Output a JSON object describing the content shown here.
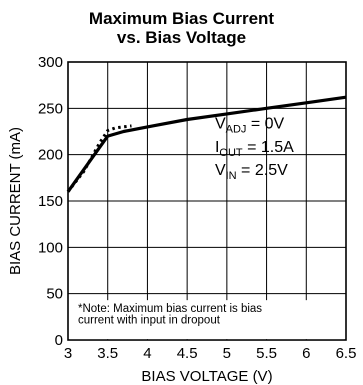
{
  "chart_data": {
    "type": "line",
    "title_lines": [
      "Maximum Bias Current",
      "vs. Bias Voltage"
    ],
    "xlabel": "BIAS VOLTAGE (V)",
    "ylabel": "BIAS CURRENT (mA)",
    "xlim": [
      3,
      6.5
    ],
    "ylim": [
      0,
      300
    ],
    "x_ticks": [
      3,
      3.5,
      4,
      4.5,
      5,
      5.5,
      6,
      6.5
    ],
    "x_tick_labels": [
      "3",
      "3.5",
      "4",
      "4.5",
      "5",
      "5.5",
      "6",
      "6.5"
    ],
    "y_ticks": [
      0,
      50,
      100,
      150,
      200,
      250,
      300
    ],
    "y_tick_labels": [
      "0",
      "50",
      "100",
      "150",
      "200",
      "250",
      "300"
    ],
    "grid": true,
    "series": [
      {
        "style": "solid",
        "x": [
          3.0,
          3.5,
          3.7,
          4.0,
          4.5,
          5.0,
          5.5,
          6.0,
          6.5
        ],
        "y": [
          160,
          220,
          225,
          230,
          238,
          244,
          250,
          256,
          262
        ]
      },
      {
        "style": "dotted",
        "x": [
          3.0,
          3.2,
          3.4,
          3.5,
          3.6,
          3.8
        ],
        "y": [
          160,
          182,
          213,
          226,
          229,
          231
        ]
      }
    ],
    "annotations": {
      "conditions": [
        {
          "symbol": "V",
          "sub": "ADJ",
          "value": " = 0V"
        },
        {
          "symbol": "I",
          "sub": "OUT",
          "value": " = 1.5A"
        },
        {
          "symbol": "V",
          "sub": "IN",
          "value": " = 2.5V"
        }
      ],
      "note_lines": [
        "*Note: Maximum bias current is bias",
        "current with input in dropout"
      ]
    }
  }
}
